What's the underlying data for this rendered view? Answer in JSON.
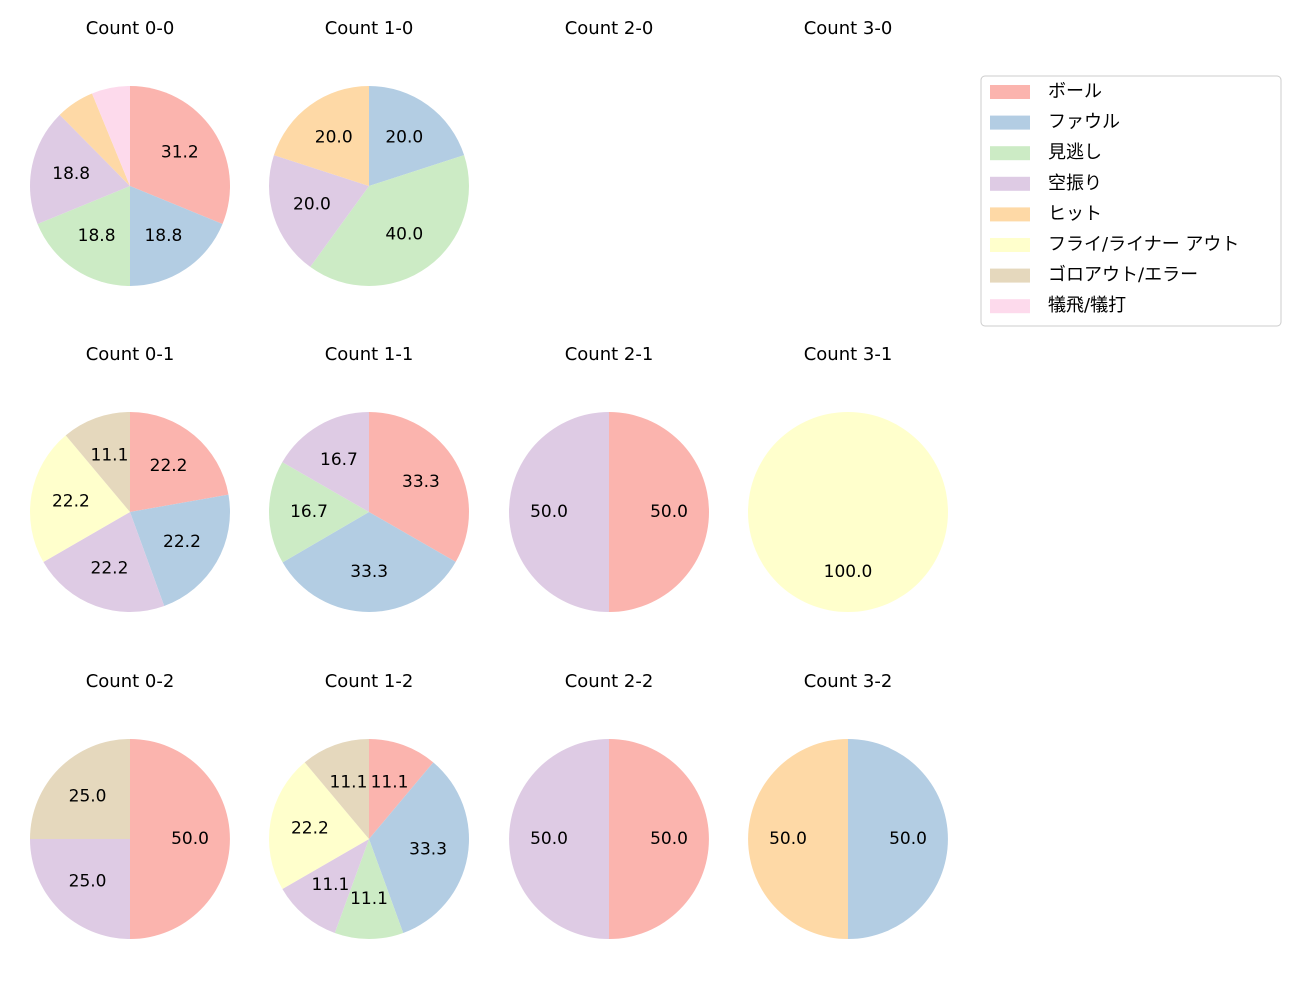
{
  "legend": {
    "labels": [
      "ボール",
      "ファウル",
      "見逃し",
      "空振り",
      "ヒット",
      "フライ/ライナー アウト",
      "ゴロアウト/エラー",
      "犠飛/犠打"
    ],
    "colors": [
      "#fbb4ae",
      "#b3cde3",
      "#ccebc5",
      "#decbe4",
      "#fed9a6",
      "#ffffcc",
      "#e5d8bd",
      "#fddaec"
    ]
  },
  "chart_data": [
    {
      "type": "pie",
      "title": "Count 0-0",
      "categories": [
        "ボール",
        "ファウル",
        "見逃し",
        "空振り",
        "ヒット",
        "犠飛/犠打"
      ],
      "values": [
        31.2,
        18.8,
        18.8,
        18.8,
        6.2,
        6.2
      ],
      "value_labels": [
        "31.2",
        "18.8",
        "18.8",
        "18.8",
        null,
        null
      ]
    },
    {
      "type": "pie",
      "title": "Count 1-0",
      "categories": [
        "ファウル",
        "見逃し",
        "空振り",
        "ヒット"
      ],
      "values": [
        20,
        40,
        20,
        20
      ],
      "value_labels": [
        "20.0",
        "40.0",
        "20.0",
        "20.0"
      ]
    },
    {
      "type": "pie",
      "title": "Count 2-0",
      "categories": [],
      "values": [],
      "value_labels": []
    },
    {
      "type": "pie",
      "title": "Count 3-0",
      "categories": [],
      "values": [],
      "value_labels": []
    },
    {
      "type": "pie",
      "title": "Count 0-1",
      "categories": [
        "ボール",
        "ファウル",
        "空振り",
        "フライ/ライナー アウト",
        "ゴロアウト/エラー"
      ],
      "values": [
        22.2,
        22.2,
        22.2,
        22.2,
        11.1
      ],
      "value_labels": [
        "22.2",
        "22.2",
        "22.2",
        "22.2",
        "11.1"
      ]
    },
    {
      "type": "pie",
      "title": "Count 1-1",
      "categories": [
        "ボール",
        "ファウル",
        "見逃し",
        "空振り"
      ],
      "values": [
        33.3,
        33.3,
        16.7,
        16.7
      ],
      "value_labels": [
        "33.3",
        "33.3",
        "16.7",
        "16.7"
      ]
    },
    {
      "type": "pie",
      "title": "Count 2-1",
      "categories": [
        "ボール",
        "空振り"
      ],
      "values": [
        50,
        50
      ],
      "value_labels": [
        "50.0",
        "50.0"
      ]
    },
    {
      "type": "pie",
      "title": "Count 3-1",
      "categories": [
        "フライ/ライナー アウト"
      ],
      "values": [
        100
      ],
      "value_labels": [
        "100.0"
      ]
    },
    {
      "type": "pie",
      "title": "Count 0-2",
      "categories": [
        "ボール",
        "空振り",
        "ゴロアウト/エラー"
      ],
      "values": [
        50,
        25,
        25
      ],
      "value_labels": [
        "50.0",
        "25.0",
        "25.0"
      ]
    },
    {
      "type": "pie",
      "title": "Count 1-2",
      "categories": [
        "ボール",
        "ファウル",
        "見逃し",
        "空振り",
        "フライ/ライナー アウト",
        "ゴロアウト/エラー"
      ],
      "values": [
        11.1,
        33.3,
        11.1,
        11.1,
        22.2,
        11.1
      ],
      "value_labels": [
        "11.1",
        "33.3",
        "11.1",
        "11.1",
        "22.2",
        "11.1"
      ]
    },
    {
      "type": "pie",
      "title": "Count 2-2",
      "categories": [
        "ボール",
        "空振り"
      ],
      "values": [
        50,
        50
      ],
      "value_labels": [
        "50.0",
        "50.0"
      ]
    },
    {
      "type": "pie",
      "title": "Count 3-2",
      "categories": [
        "ファウル",
        "ヒット"
      ],
      "values": [
        50,
        50
      ],
      "value_labels": [
        "50.0",
        "50.0"
      ]
    }
  ]
}
